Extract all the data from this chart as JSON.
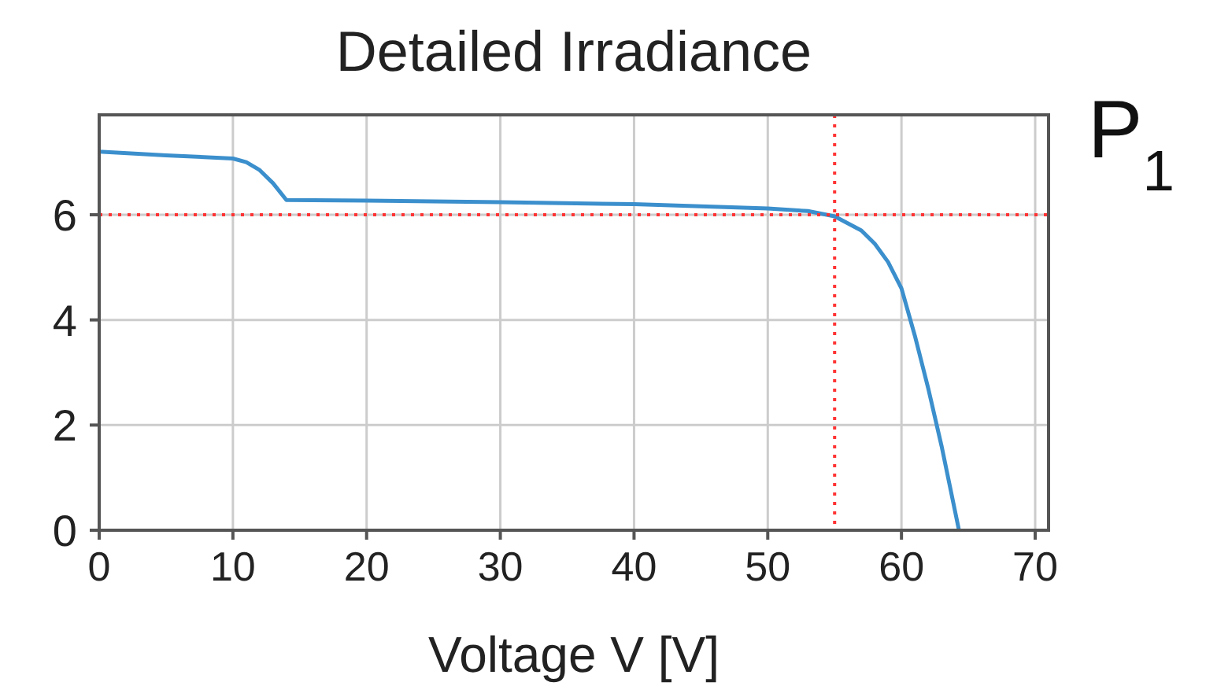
{
  "chart_data": {
    "type": "line",
    "title": "Detailed Irradiance",
    "xlabel": "Voltage V [V]",
    "annotations": [
      "P$_{1}$"
    ],
    "series": [
      {
        "color": "#3b8fcc",
        "x": [
          0,
          5,
          10,
          11,
          12,
          13,
          14,
          20,
          30,
          40,
          50,
          53,
          55,
          57,
          58,
          59,
          60,
          61,
          62,
          63,
          64.3
        ],
        "values": [
          7.2,
          7.13,
          7.07,
          7.0,
          6.85,
          6.6,
          6.28,
          6.27,
          6.24,
          6.2,
          6.12,
          6.07,
          5.97,
          5.7,
          5.45,
          5.1,
          4.6,
          3.7,
          2.7,
          1.6,
          0
        ]
      }
    ],
    "xlim": [
      0,
      71
    ],
    "xticks": [
      0,
      10,
      20,
      30,
      40,
      50,
      60,
      70
    ],
    "ylim": [
      0,
      7.9
    ],
    "yticks": [
      0,
      2,
      4,
      6
    ],
    "grid": true,
    "ref_lines": [
      {
        "axis": "y",
        "value": 6,
        "color": "#ff3333",
        "line_style": "dotted"
      },
      {
        "axis": "x",
        "value": 55,
        "color": "#ff3333",
        "line_style": "dotted"
      }
    ]
  }
}
